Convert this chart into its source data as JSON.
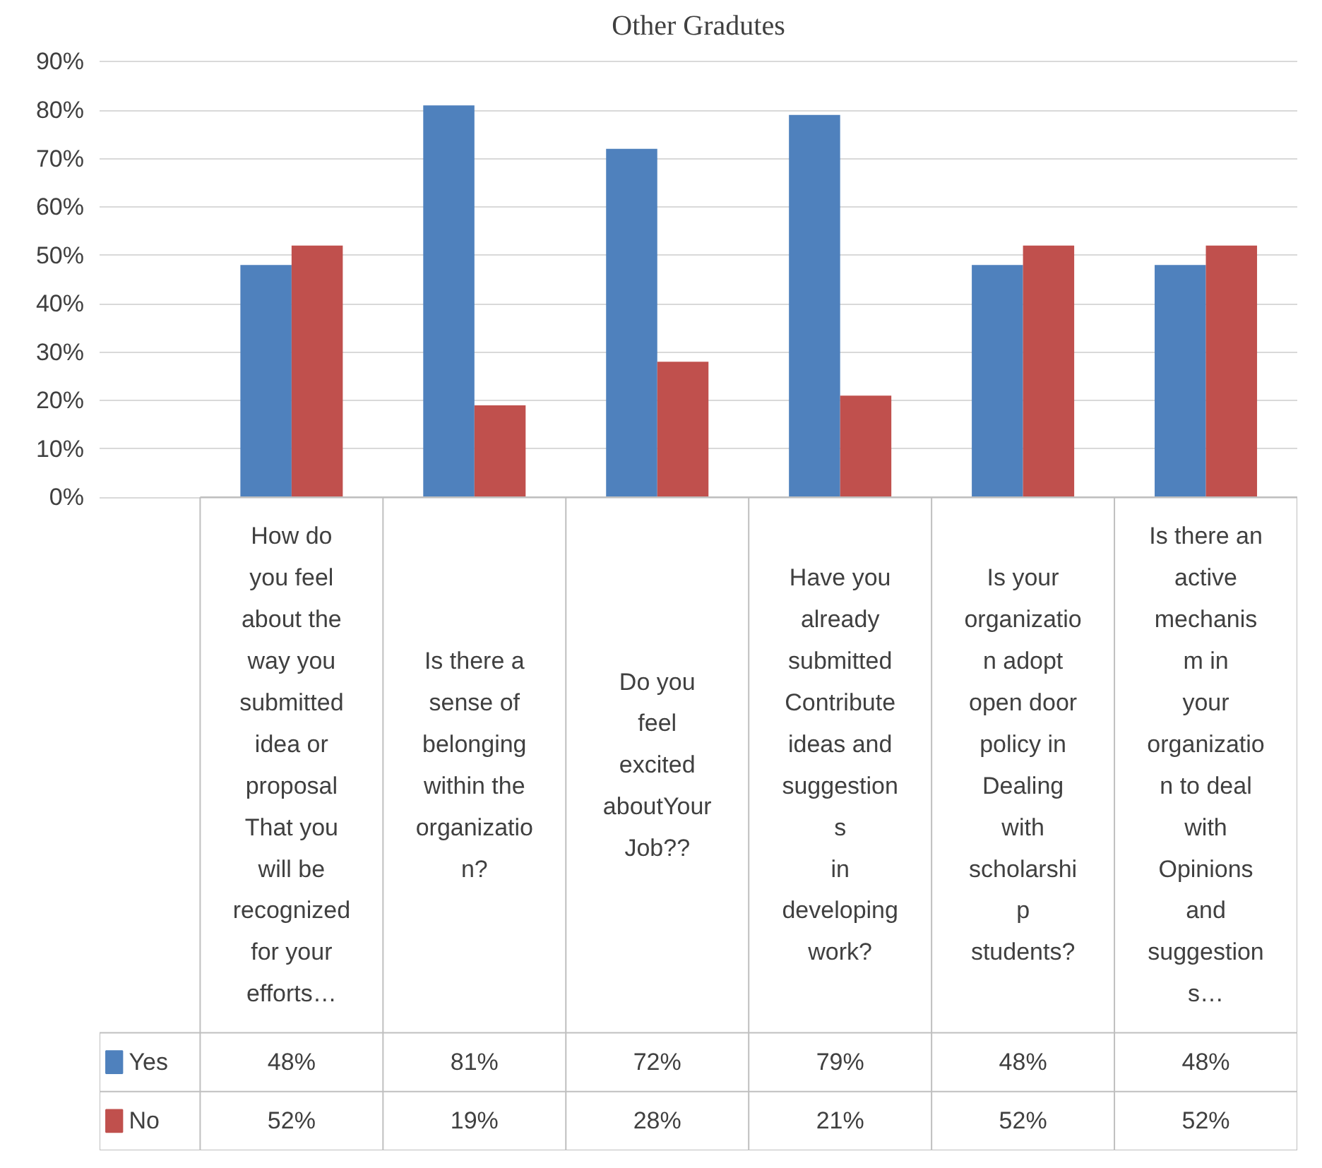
{
  "chart_data": {
    "type": "bar",
    "title": "Other Gradutes",
    "categories": [
      "How do\nyou feel\nabout the\nway you\nsubmitted\nidea or\nproposal\nThat you\nwill be\nrecognized\nfor your\nefforts…",
      "Is there a\nsense of\nbelonging\nwithin the\norganizatio\nn?",
      "Do you\nfeel\nexcited\naboutYour\nJob??",
      "Have you\nalready\nsubmitted\nContribute\nideas and\nsuggestion\ns\nin\ndeveloping\nwork?",
      "Is your\norganizatio\nn adopt\nopen door\npolicy in\nDealing\nwith\nscholarshi\np\nstudents?",
      "Is there an\nactive\nmechanis\nm in\nyour\norganizatio\nn to deal\nwith\nOpinions\nand\nsuggestion\ns…"
    ],
    "series": [
      {
        "name": "Yes",
        "color": "#4f81bd",
        "values": [
          48,
          81,
          72,
          79,
          48,
          48
        ],
        "value_labels": [
          "48%",
          "81%",
          "72%",
          "79%",
          "48%",
          "48%"
        ]
      },
      {
        "name": "No",
        "color": "#c0504d",
        "values": [
          52,
          19,
          28,
          21,
          52,
          52
        ],
        "value_labels": [
          "52%",
          "19%",
          "28%",
          "21%",
          "52%",
          "52%"
        ]
      }
    ],
    "ylim": [
      0,
      90
    ],
    "yticks": [
      {
        "value": 0,
        "label": "0%"
      },
      {
        "value": 10,
        "label": "10%"
      },
      {
        "value": 20,
        "label": "20%"
      },
      {
        "value": 30,
        "label": "30%"
      },
      {
        "value": 40,
        "label": "40%"
      },
      {
        "value": 50,
        "label": "50%"
      },
      {
        "value": 60,
        "label": "60%"
      },
      {
        "value": 70,
        "label": "70%"
      },
      {
        "value": 80,
        "label": "80%"
      },
      {
        "value": 90,
        "label": "90%"
      }
    ],
    "grid": "y",
    "legend": "bottom left"
  }
}
